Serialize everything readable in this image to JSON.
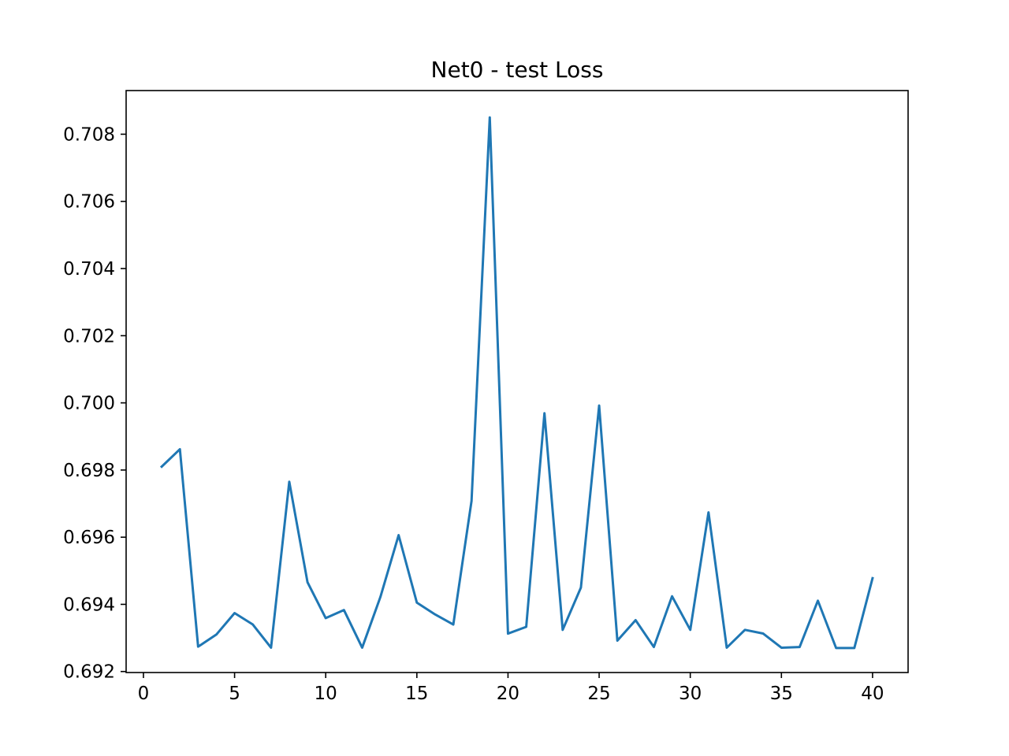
{
  "chart_data": {
    "type": "line",
    "title": "Net0 - test Loss",
    "xlabel": "",
    "ylabel": "",
    "xlim": [
      -0.95,
      41.95
    ],
    "ylim": [
      0.69197,
      0.7093
    ],
    "x_ticks": [
      0,
      5,
      10,
      15,
      20,
      25,
      30,
      35,
      40
    ],
    "y_ticks": [
      0.692,
      0.694,
      0.696,
      0.698,
      0.7,
      0.702,
      0.704,
      0.706,
      0.708
    ],
    "grid": false,
    "legend": "none",
    "series": [
      {
        "color": "#1f77b4",
        "x": [
          1,
          2,
          3,
          4,
          5,
          6,
          7,
          8,
          9,
          10,
          11,
          12,
          13,
          14,
          15,
          16,
          17,
          18,
          19,
          20,
          21,
          22,
          23,
          24,
          25,
          26,
          27,
          28,
          29,
          30,
          31,
          32,
          33,
          34,
          35,
          36,
          37,
          38,
          39,
          40
        ],
        "values": [
          0.6981,
          0.69862,
          0.69274,
          0.6931,
          0.69374,
          0.6934,
          0.69271,
          0.69765,
          0.69466,
          0.69359,
          0.69383,
          0.69271,
          0.69422,
          0.69606,
          0.69405,
          0.6937,
          0.6934,
          0.69708,
          0.7085,
          0.69313,
          0.69333,
          0.69969,
          0.69324,
          0.6945,
          0.69992,
          0.69292,
          0.69353,
          0.69273,
          0.69424,
          0.69324,
          0.69674,
          0.69271,
          0.69324,
          0.69313,
          0.69271,
          0.69273,
          0.69411,
          0.6927,
          0.6927,
          0.69478
        ]
      }
    ]
  }
}
